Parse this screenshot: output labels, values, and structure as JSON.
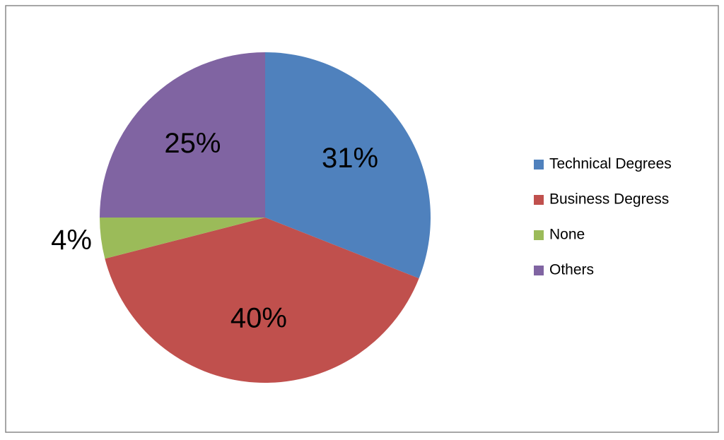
{
  "chart_data": {
    "type": "pie",
    "categories": [
      "Technical Degrees",
      "Business Degress",
      "None",
      "Others"
    ],
    "values": [
      31,
      40,
      4,
      25
    ],
    "value_labels": [
      "31%",
      "40%",
      "4%",
      "25%"
    ],
    "colors": [
      "#4f81bd",
      "#c0504d",
      "#9bbb59",
      "#8064a2"
    ],
    "legend": "right"
  }
}
